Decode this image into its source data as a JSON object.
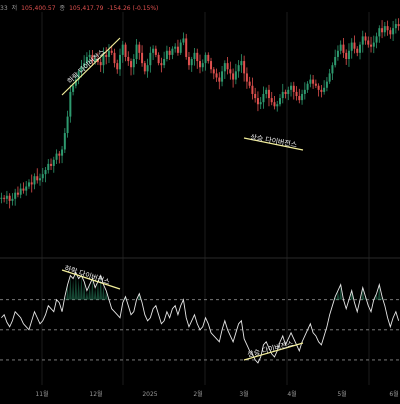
{
  "header": {
    "open_fragment": "33",
    "low_label": "저",
    "low_value": "105,400.57",
    "close_label": "종",
    "close_value": "105,417.79",
    "change": "-154.26 (-0.15%)"
  },
  "annotations": {
    "price_bearish": "하락 다이버전스",
    "price_bullish": "상승 다이버전스",
    "rsi_bearish": "하락 다이버전스",
    "rsi_bullish": "상승 다이버전스"
  },
  "time_axis": [
    "11월",
    "12월",
    "2025",
    "2월",
    "3월",
    "4월",
    "5월",
    "6월"
  ],
  "colors": {
    "up_candle": "#2e9a6f",
    "down_candle": "#e0514f",
    "annotation_line": "#f2ee9a",
    "rsi_line": "#e6e6e6",
    "grid": "#1c1c1c"
  },
  "chart_data": {
    "type": "candlestick",
    "title": "",
    "price_series": [
      47,
      46,
      49,
      44,
      46,
      52,
      50,
      56,
      54,
      58,
      62,
      60,
      68,
      64,
      66,
      70,
      74,
      80,
      78,
      84,
      90,
      88,
      94,
      110,
      126,
      150,
      156,
      162,
      170,
      175,
      178,
      184,
      186,
      180,
      182,
      179,
      176,
      186,
      184,
      190,
      188,
      178,
      172,
      186,
      196,
      184,
      180,
      174,
      182,
      196,
      188,
      178,
      170,
      176,
      188,
      192,
      186,
      178,
      176,
      182,
      190,
      186,
      192,
      194,
      188,
      198,
      202,
      184,
      176,
      182,
      188,
      180,
      174,
      178,
      186,
      180,
      172,
      168,
      164,
      160,
      170,
      178,
      172,
      168,
      162,
      170,
      176,
      180,
      168,
      160,
      156,
      148,
      144,
      138,
      140,
      148,
      152,
      144,
      140,
      136,
      138,
      144,
      150,
      148,
      152,
      156,
      150,
      146,
      142,
      148,
      152,
      158,
      162,
      158,
      156,
      152,
      150,
      154,
      160,
      168,
      176,
      184,
      190,
      196,
      188,
      182,
      190,
      198,
      192,
      188,
      196,
      204,
      200,
      196,
      194,
      198,
      204,
      212,
      208,
      214,
      210,
      206,
      212,
      216,
      214
    ],
    "rsi_series": [
      58,
      60,
      55,
      52,
      56,
      62,
      60,
      58,
      54,
      52,
      50,
      56,
      62,
      58,
      54,
      56,
      60,
      66,
      64,
      62,
      70,
      68,
      62,
      72,
      80,
      86,
      84,
      88,
      84,
      86,
      82,
      76,
      80,
      84,
      78,
      82,
      86,
      80,
      76,
      70,
      64,
      62,
      60,
      58,
      68,
      72,
      66,
      60,
      62,
      70,
      74,
      68,
      60,
      56,
      58,
      64,
      66,
      60,
      54,
      56,
      62,
      58,
      64,
      66,
      60,
      66,
      70,
      58,
      52,
      56,
      60,
      54,
      50,
      52,
      58,
      54,
      48,
      46,
      44,
      42,
      50,
      56,
      50,
      46,
      42,
      48,
      54,
      56,
      44,
      40,
      36,
      34,
      30,
      28,
      32,
      40,
      42,
      38,
      34,
      32,
      36,
      42,
      46,
      40,
      44,
      48,
      44,
      40,
      36,
      42,
      46,
      50,
      54,
      48,
      46,
      42,
      40,
      46,
      52,
      60,
      66,
      72,
      76,
      80,
      70,
      64,
      70,
      76,
      68,
      62,
      70,
      78,
      72,
      66,
      62,
      70,
      74,
      80,
      72,
      66,
      58,
      52,
      58,
      62,
      56
    ],
    "rsi_levels": [
      70,
      50,
      30
    ],
    "ylim_rsi": [
      20,
      95
    ]
  }
}
